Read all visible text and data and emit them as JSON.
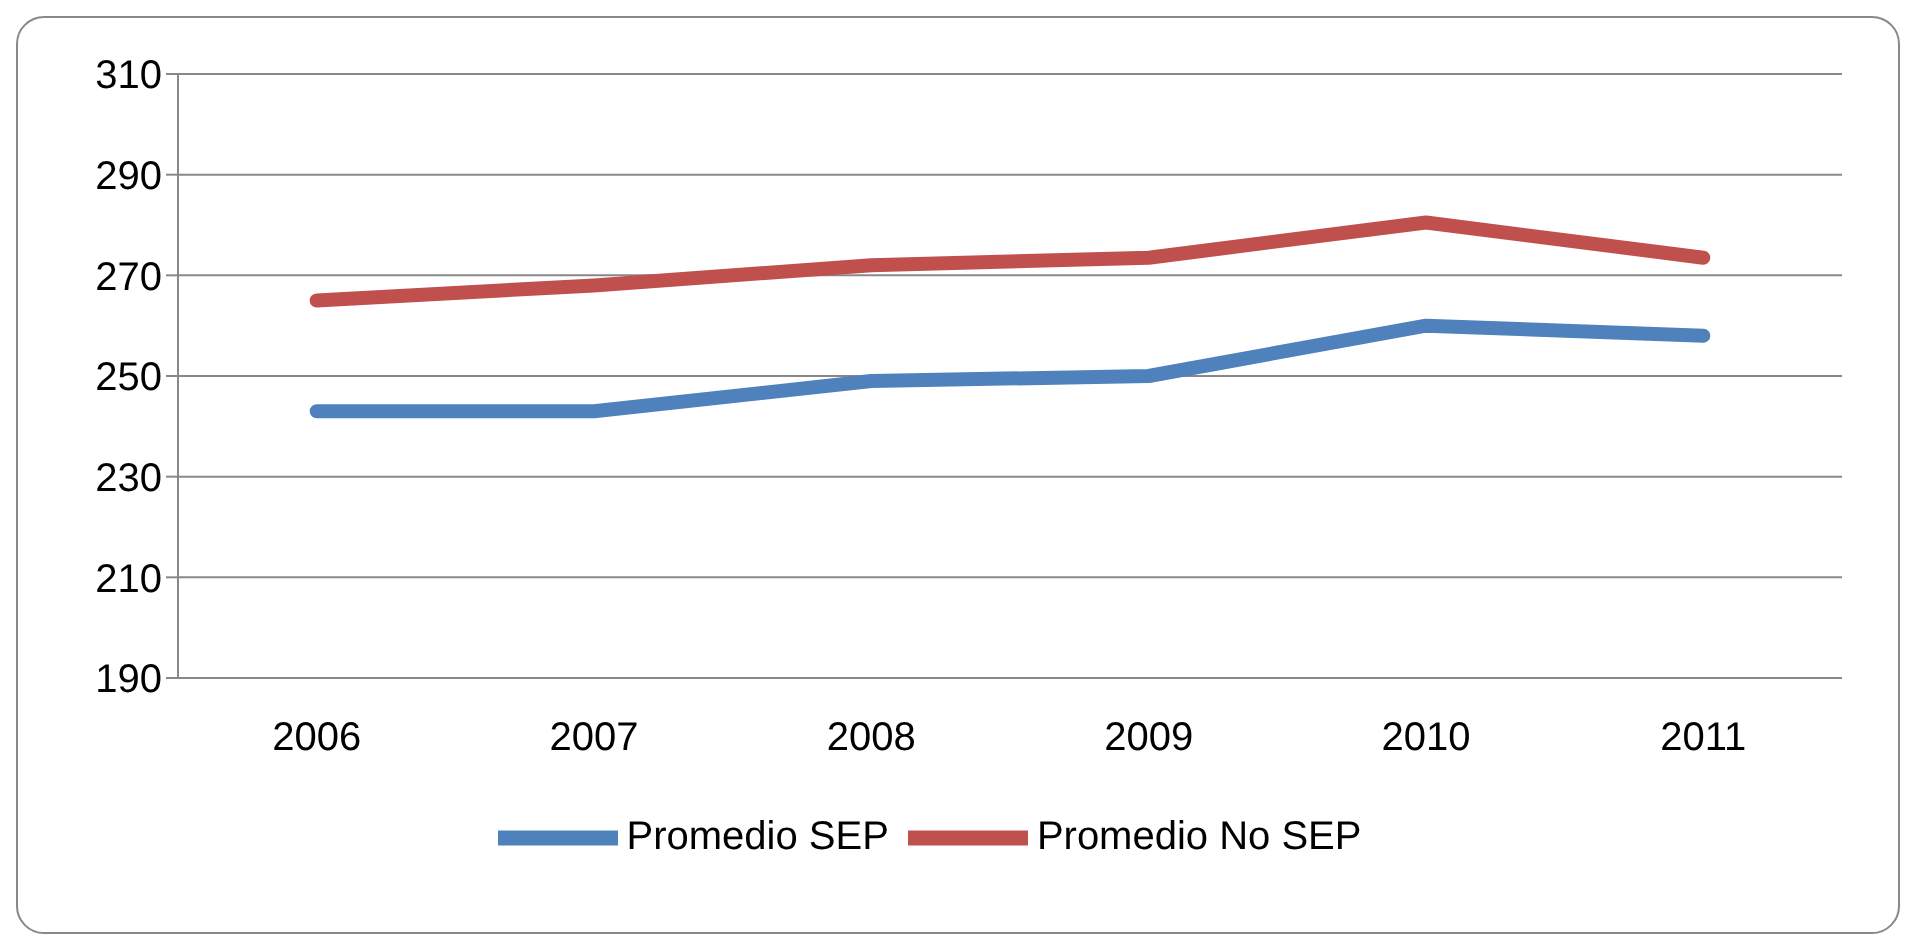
{
  "chart_data": {
    "type": "line",
    "categories": [
      "2006",
      "2007",
      "2008",
      "2009",
      "2010",
      "2011"
    ],
    "series": [
      {
        "name": "Promedio SEP",
        "color": "#4f81bd",
        "values": [
          243,
          243,
          249,
          250,
          260,
          258
        ]
      },
      {
        "name": "Promedio No SEP",
        "color": "#c0504d",
        "values": [
          265,
          268,
          272,
          273.5,
          280.5,
          273.5
        ]
      }
    ],
    "ylim": [
      190,
      310
    ],
    "yticks": [
      190,
      210,
      230,
      250,
      270,
      290,
      310
    ],
    "grid": "y",
    "legend": "bottom",
    "marker": "none",
    "line_style": "solid"
  }
}
